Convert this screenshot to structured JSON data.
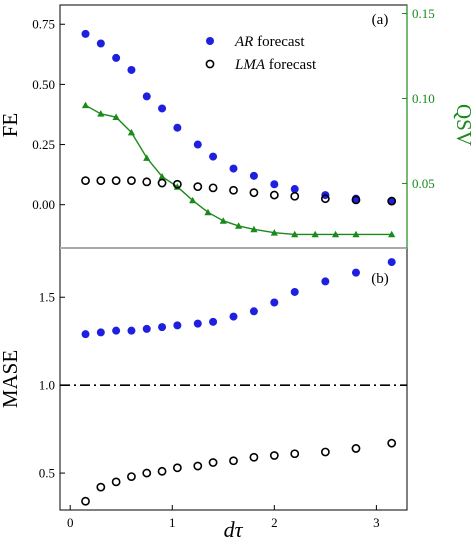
{
  "chart_data": [
    {
      "panel_label": "(a)",
      "type": "scatter",
      "x_range": [
        -0.1,
        3.3
      ],
      "y_left": {
        "label": "FE",
        "range": [
          -0.18,
          0.83
        ],
        "ticks": [
          "0.00",
          "0.25",
          "0.50",
          "0.75"
        ],
        "tick_values": [
          0,
          0.25,
          0.5,
          0.75
        ]
      },
      "y_right": {
        "label": "QSV",
        "range": [
          0.012,
          0.155
        ],
        "ticks": [
          "0.05",
          "0.10",
          "0.15"
        ],
        "tick_values": [
          0.05,
          0.1,
          0.15
        ],
        "color": "#1a8a1a"
      },
      "legend_position": "top-center",
      "series": [
        {
          "name_prefix": "AR",
          "name_suffix": " forecast",
          "marker": "filled-circle",
          "color": "#1f1fe0",
          "axis": "left",
          "x": [
            0.15,
            0.3,
            0.45,
            0.6,
            0.75,
            0.9,
            1.05,
            1.25,
            1.4,
            1.6,
            1.8,
            2.0,
            2.2,
            2.5,
            2.8,
            3.15
          ],
          "y": [
            0.71,
            0.67,
            0.61,
            0.56,
            0.45,
            0.4,
            0.32,
            0.25,
            0.2,
            0.15,
            0.12,
            0.085,
            0.065,
            0.04,
            0.025,
            0.015
          ]
        },
        {
          "name_prefix": "LMA",
          "name_suffix": " forecast",
          "marker": "open-circle",
          "color": "#000000",
          "axis": "left",
          "x": [
            0.15,
            0.3,
            0.45,
            0.6,
            0.75,
            0.9,
            1.05,
            1.25,
            1.4,
            1.6,
            1.8,
            2.0,
            2.2,
            2.5,
            2.8,
            3.15
          ],
          "y": [
            0.1,
            0.1,
            0.1,
            0.1,
            0.095,
            0.09,
            0.085,
            0.075,
            0.07,
            0.06,
            0.05,
            0.04,
            0.035,
            0.025,
            0.02,
            0.015
          ]
        },
        {
          "name": "QSV",
          "marker": "triangle-line",
          "color": "#1a8a1a",
          "axis": "right",
          "x": [
            0.15,
            0.3,
            0.45,
            0.6,
            0.75,
            0.9,
            1.05,
            1.2,
            1.35,
            1.5,
            1.65,
            1.8,
            2.0,
            2.2,
            2.4,
            2.6,
            2.8,
            3.15
          ],
          "y": [
            0.096,
            0.091,
            0.089,
            0.08,
            0.065,
            0.054,
            0.048,
            0.04,
            0.033,
            0.028,
            0.025,
            0.023,
            0.021,
            0.02,
            0.02,
            0.02,
            0.02,
            0.02
          ]
        }
      ]
    },
    {
      "panel_label": "(b)",
      "type": "scatter",
      "x_range": [
        -0.1,
        3.3
      ],
      "x_ticks": [
        "0",
        "1",
        "2",
        "3"
      ],
      "x_tick_values": [
        0,
        1,
        2,
        3
      ],
      "xlabel": "dτ",
      "y_left": {
        "label": "MASE",
        "range": [
          0.29,
          1.78
        ],
        "ticks": [
          "0.5",
          "1.0",
          "1.5"
        ],
        "tick_values": [
          0.5,
          1.0,
          1.5
        ]
      },
      "reference_line": {
        "y": 1.0,
        "style": "dash-dot"
      },
      "series": [
        {
          "name": "AR forecast",
          "marker": "filled-circle",
          "color": "#1f1fe0",
          "x": [
            0.15,
            0.3,
            0.45,
            0.6,
            0.75,
            0.9,
            1.05,
            1.25,
            1.4,
            1.6,
            1.8,
            2.0,
            2.2,
            2.5,
            2.8,
            3.15
          ],
          "y": [
            1.29,
            1.3,
            1.31,
            1.31,
            1.32,
            1.33,
            1.34,
            1.35,
            1.36,
            1.39,
            1.42,
            1.47,
            1.53,
            1.59,
            1.64,
            1.7
          ]
        },
        {
          "name": "LMA forecast",
          "marker": "open-circle",
          "color": "#000000",
          "x": [
            0.15,
            0.3,
            0.45,
            0.6,
            0.75,
            0.9,
            1.05,
            1.25,
            1.4,
            1.6,
            1.8,
            2.0,
            2.2,
            2.5,
            2.8,
            3.15
          ],
          "y": [
            0.34,
            0.42,
            0.45,
            0.48,
            0.5,
            0.51,
            0.53,
            0.54,
            0.56,
            0.57,
            0.59,
            0.6,
            0.61,
            0.62,
            0.64,
            0.67
          ]
        }
      ]
    }
  ]
}
